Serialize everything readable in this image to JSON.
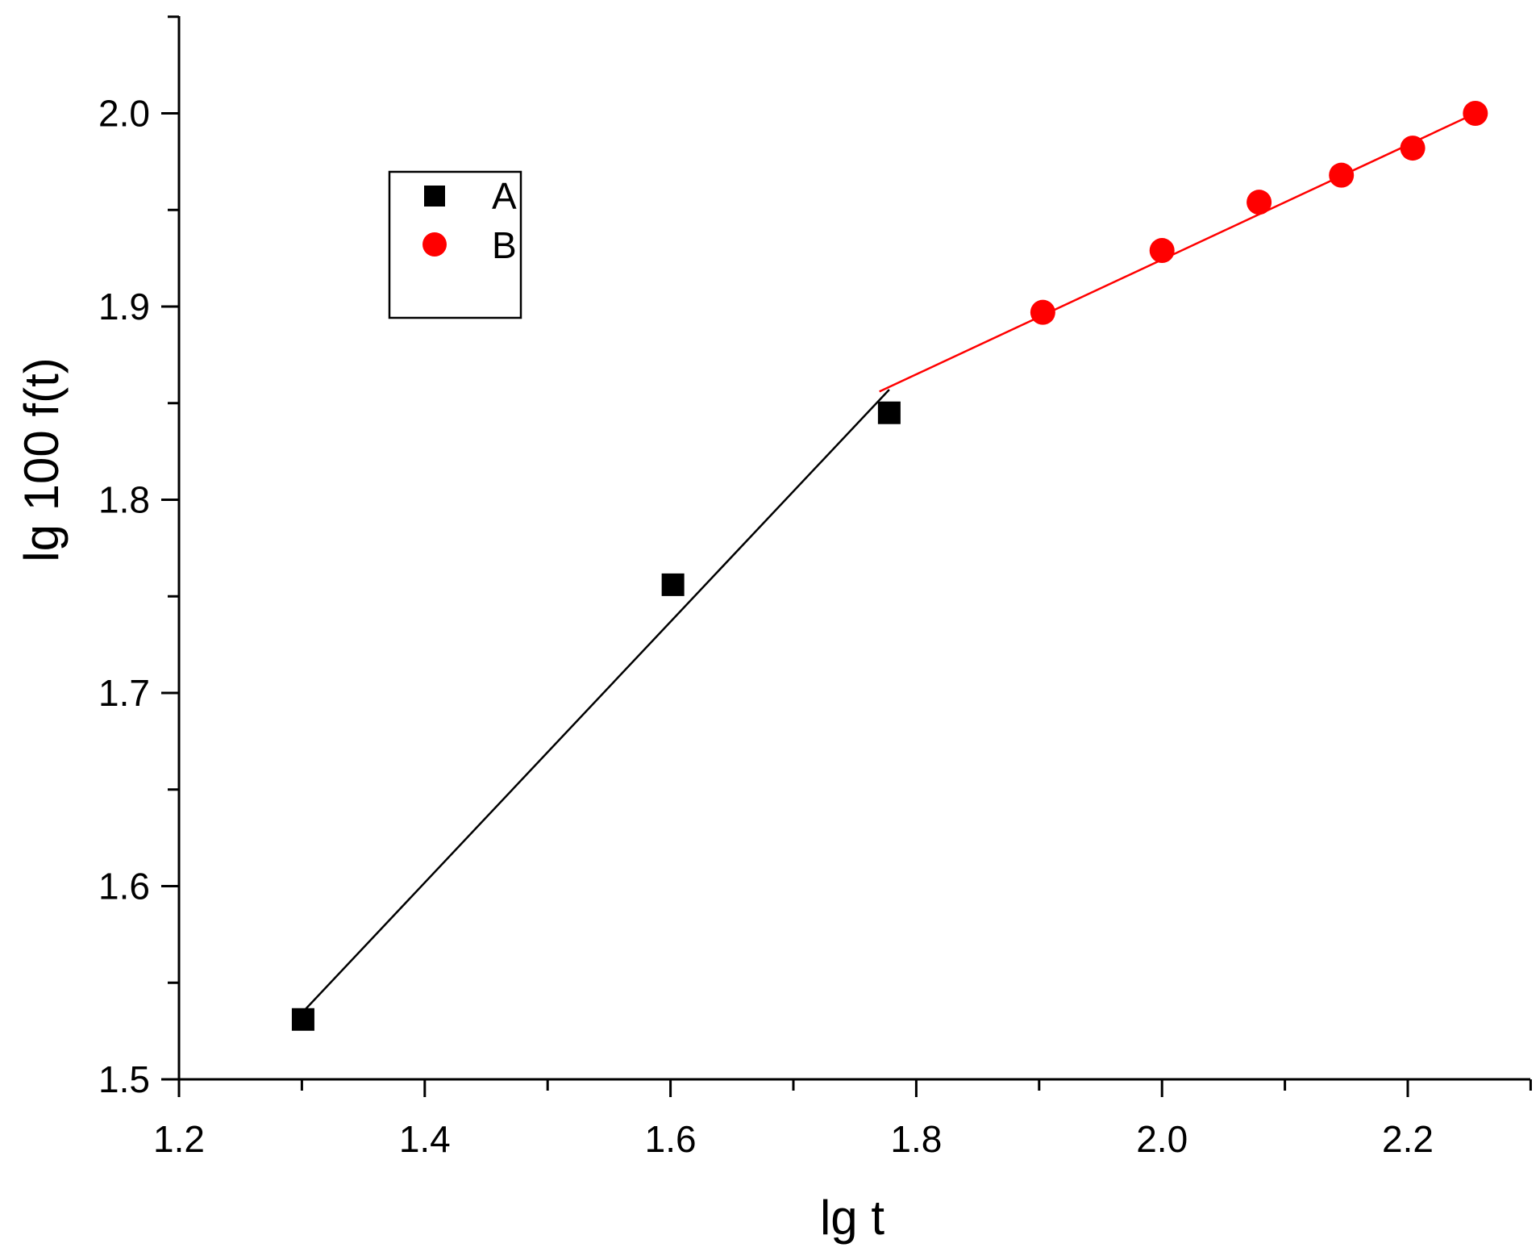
{
  "chart_data": {
    "type": "scatter",
    "title": "",
    "xlabel": "lg t",
    "ylabel": "lg 100 f(t)",
    "xlim": [
      1.2,
      2.3
    ],
    "ylim": [
      1.5,
      2.05
    ],
    "x_ticks": [
      "1.2",
      "1.4",
      "1.6",
      "1.8",
      "2.0",
      "2.2"
    ],
    "y_ticks": [
      "1.5",
      "1.6",
      "1.7",
      "1.8",
      "1.9",
      "2.0"
    ],
    "grid": false,
    "legend_position": "top-left",
    "series": [
      {
        "name": "A",
        "marker": "square",
        "color": "#000000",
        "x": [
          1.301,
          1.602,
          1.778
        ],
        "y": [
          1.531,
          1.756,
          1.845
        ],
        "fit_line": {
          "x": [
            1.301,
            1.778
          ],
          "y": [
            1.535,
            1.857
          ]
        }
      },
      {
        "name": "B",
        "marker": "circle",
        "color": "#ff0000",
        "x": [
          1.903,
          2.0,
          2.079,
          2.146,
          2.204,
          2.255
        ],
        "y": [
          1.897,
          1.929,
          1.954,
          1.968,
          1.982,
          2.0
        ],
        "fit_line": {
          "x": [
            1.77,
            2.255
          ],
          "y": [
            1.856,
            2.0
          ]
        }
      }
    ]
  }
}
